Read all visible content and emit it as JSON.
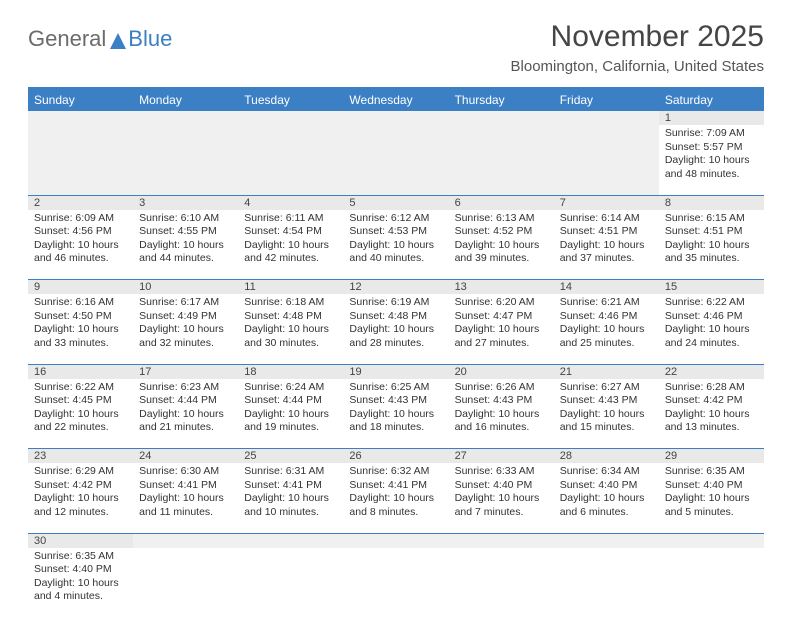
{
  "brand": {
    "part1": "General",
    "part2": "Blue"
  },
  "title": "November 2025",
  "location": "Bloomington, California, United States",
  "colors": {
    "accent": "#3b7fc4",
    "header_bg": "#3b7fc4",
    "header_text": "#ffffff",
    "daynum_bg": "#e9e9e9",
    "blank_bg": "#f0f0f0",
    "text": "#333333",
    "title_text": "#454545"
  },
  "day_headers": [
    "Sunday",
    "Monday",
    "Tuesday",
    "Wednesday",
    "Thursday",
    "Friday",
    "Saturday"
  ],
  "weeks": [
    {
      "nums": [
        "",
        "",
        "",
        "",
        "",
        "",
        "1"
      ],
      "cells": [
        null,
        null,
        null,
        null,
        null,
        null,
        {
          "sunrise": "Sunrise: 7:09 AM",
          "sunset": "Sunset: 5:57 PM",
          "daylight": "Daylight: 10 hours and 48 minutes."
        }
      ]
    },
    {
      "nums": [
        "2",
        "3",
        "4",
        "5",
        "6",
        "7",
        "8"
      ],
      "cells": [
        {
          "sunrise": "Sunrise: 6:09 AM",
          "sunset": "Sunset: 4:56 PM",
          "daylight": "Daylight: 10 hours and 46 minutes."
        },
        {
          "sunrise": "Sunrise: 6:10 AM",
          "sunset": "Sunset: 4:55 PM",
          "daylight": "Daylight: 10 hours and 44 minutes."
        },
        {
          "sunrise": "Sunrise: 6:11 AM",
          "sunset": "Sunset: 4:54 PM",
          "daylight": "Daylight: 10 hours and 42 minutes."
        },
        {
          "sunrise": "Sunrise: 6:12 AM",
          "sunset": "Sunset: 4:53 PM",
          "daylight": "Daylight: 10 hours and 40 minutes."
        },
        {
          "sunrise": "Sunrise: 6:13 AM",
          "sunset": "Sunset: 4:52 PM",
          "daylight": "Daylight: 10 hours and 39 minutes."
        },
        {
          "sunrise": "Sunrise: 6:14 AM",
          "sunset": "Sunset: 4:51 PM",
          "daylight": "Daylight: 10 hours and 37 minutes."
        },
        {
          "sunrise": "Sunrise: 6:15 AM",
          "sunset": "Sunset: 4:51 PM",
          "daylight": "Daylight: 10 hours and 35 minutes."
        }
      ]
    },
    {
      "nums": [
        "9",
        "10",
        "11",
        "12",
        "13",
        "14",
        "15"
      ],
      "cells": [
        {
          "sunrise": "Sunrise: 6:16 AM",
          "sunset": "Sunset: 4:50 PM",
          "daylight": "Daylight: 10 hours and 33 minutes."
        },
        {
          "sunrise": "Sunrise: 6:17 AM",
          "sunset": "Sunset: 4:49 PM",
          "daylight": "Daylight: 10 hours and 32 minutes."
        },
        {
          "sunrise": "Sunrise: 6:18 AM",
          "sunset": "Sunset: 4:48 PM",
          "daylight": "Daylight: 10 hours and 30 minutes."
        },
        {
          "sunrise": "Sunrise: 6:19 AM",
          "sunset": "Sunset: 4:48 PM",
          "daylight": "Daylight: 10 hours and 28 minutes."
        },
        {
          "sunrise": "Sunrise: 6:20 AM",
          "sunset": "Sunset: 4:47 PM",
          "daylight": "Daylight: 10 hours and 27 minutes."
        },
        {
          "sunrise": "Sunrise: 6:21 AM",
          "sunset": "Sunset: 4:46 PM",
          "daylight": "Daylight: 10 hours and 25 minutes."
        },
        {
          "sunrise": "Sunrise: 6:22 AM",
          "sunset": "Sunset: 4:46 PM",
          "daylight": "Daylight: 10 hours and 24 minutes."
        }
      ]
    },
    {
      "nums": [
        "16",
        "17",
        "18",
        "19",
        "20",
        "21",
        "22"
      ],
      "cells": [
        {
          "sunrise": "Sunrise: 6:22 AM",
          "sunset": "Sunset: 4:45 PM",
          "daylight": "Daylight: 10 hours and 22 minutes."
        },
        {
          "sunrise": "Sunrise: 6:23 AM",
          "sunset": "Sunset: 4:44 PM",
          "daylight": "Daylight: 10 hours and 21 minutes."
        },
        {
          "sunrise": "Sunrise: 6:24 AM",
          "sunset": "Sunset: 4:44 PM",
          "daylight": "Daylight: 10 hours and 19 minutes."
        },
        {
          "sunrise": "Sunrise: 6:25 AM",
          "sunset": "Sunset: 4:43 PM",
          "daylight": "Daylight: 10 hours and 18 minutes."
        },
        {
          "sunrise": "Sunrise: 6:26 AM",
          "sunset": "Sunset: 4:43 PM",
          "daylight": "Daylight: 10 hours and 16 minutes."
        },
        {
          "sunrise": "Sunrise: 6:27 AM",
          "sunset": "Sunset: 4:43 PM",
          "daylight": "Daylight: 10 hours and 15 minutes."
        },
        {
          "sunrise": "Sunrise: 6:28 AM",
          "sunset": "Sunset: 4:42 PM",
          "daylight": "Daylight: 10 hours and 13 minutes."
        }
      ]
    },
    {
      "nums": [
        "23",
        "24",
        "25",
        "26",
        "27",
        "28",
        "29"
      ],
      "cells": [
        {
          "sunrise": "Sunrise: 6:29 AM",
          "sunset": "Sunset: 4:42 PM",
          "daylight": "Daylight: 10 hours and 12 minutes."
        },
        {
          "sunrise": "Sunrise: 6:30 AM",
          "sunset": "Sunset: 4:41 PM",
          "daylight": "Daylight: 10 hours and 11 minutes."
        },
        {
          "sunrise": "Sunrise: 6:31 AM",
          "sunset": "Sunset: 4:41 PM",
          "daylight": "Daylight: 10 hours and 10 minutes."
        },
        {
          "sunrise": "Sunrise: 6:32 AM",
          "sunset": "Sunset: 4:41 PM",
          "daylight": "Daylight: 10 hours and 8 minutes."
        },
        {
          "sunrise": "Sunrise: 6:33 AM",
          "sunset": "Sunset: 4:40 PM",
          "daylight": "Daylight: 10 hours and 7 minutes."
        },
        {
          "sunrise": "Sunrise: 6:34 AM",
          "sunset": "Sunset: 4:40 PM",
          "daylight": "Daylight: 10 hours and 6 minutes."
        },
        {
          "sunrise": "Sunrise: 6:35 AM",
          "sunset": "Sunset: 4:40 PM",
          "daylight": "Daylight: 10 hours and 5 minutes."
        }
      ]
    },
    {
      "nums": [
        "30",
        "",
        "",
        "",
        "",
        "",
        ""
      ],
      "cells": [
        {
          "sunrise": "Sunrise: 6:35 AM",
          "sunset": "Sunset: 4:40 PM",
          "daylight": "Daylight: 10 hours and 4 minutes."
        },
        null,
        null,
        null,
        null,
        null,
        null
      ]
    }
  ]
}
